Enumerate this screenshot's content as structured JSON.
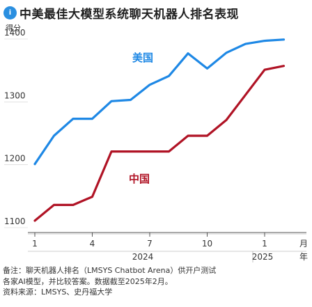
{
  "header": {
    "title": "中美最佳大模型系统聊天机器人排名表现",
    "logo_letter": "i"
  },
  "chart_data": {
    "type": "line",
    "title": "中美最佳大模型系统聊天机器人排名表现",
    "ylabel": "得分",
    "xlabel": "月",
    "ylim": [
      1100,
      1400
    ],
    "yticks": [
      1100,
      1200,
      1300,
      1400
    ],
    "x_tick_labels": [
      "1",
      "4",
      "7",
      "10",
      "1"
    ],
    "year_labels": [
      "2024",
      "2025"
    ],
    "x_unit_label": "月",
    "x_unit_label_2": "年",
    "grid": false,
    "months": [
      "2024-01",
      "2024-02",
      "2024-03",
      "2024-04",
      "2024-05",
      "2024-06",
      "2024-07",
      "2024-08",
      "2024-09",
      "2024-10",
      "2024-11",
      "2024-12",
      "2025-01",
      "2025-02"
    ],
    "series": [
      {
        "name": "美国",
        "color": "#1e88e5",
        "values": [
          1200,
          1245,
          1272,
          1272,
          1300,
          1302,
          1326,
          1340,
          1376,
          1352,
          1377,
          1391,
          1396,
          1398
        ]
      },
      {
        "name": "中国",
        "color": "#b01325",
        "values": [
          1110,
          1135,
          1135,
          1148,
          1220,
          1220,
          1220,
          1220,
          1245,
          1245,
          1270,
          1310,
          1350,
          1356
        ]
      }
    ]
  },
  "notes": {
    "line1": "备注：聊天机器人排名（LMSYS Chatbot Arena）供开户测试",
    "line2": "各家AI模型，并比较答案。数据截至2025年2月。",
    "line3": "资料来源：LMSYS、史丹福大学"
  }
}
